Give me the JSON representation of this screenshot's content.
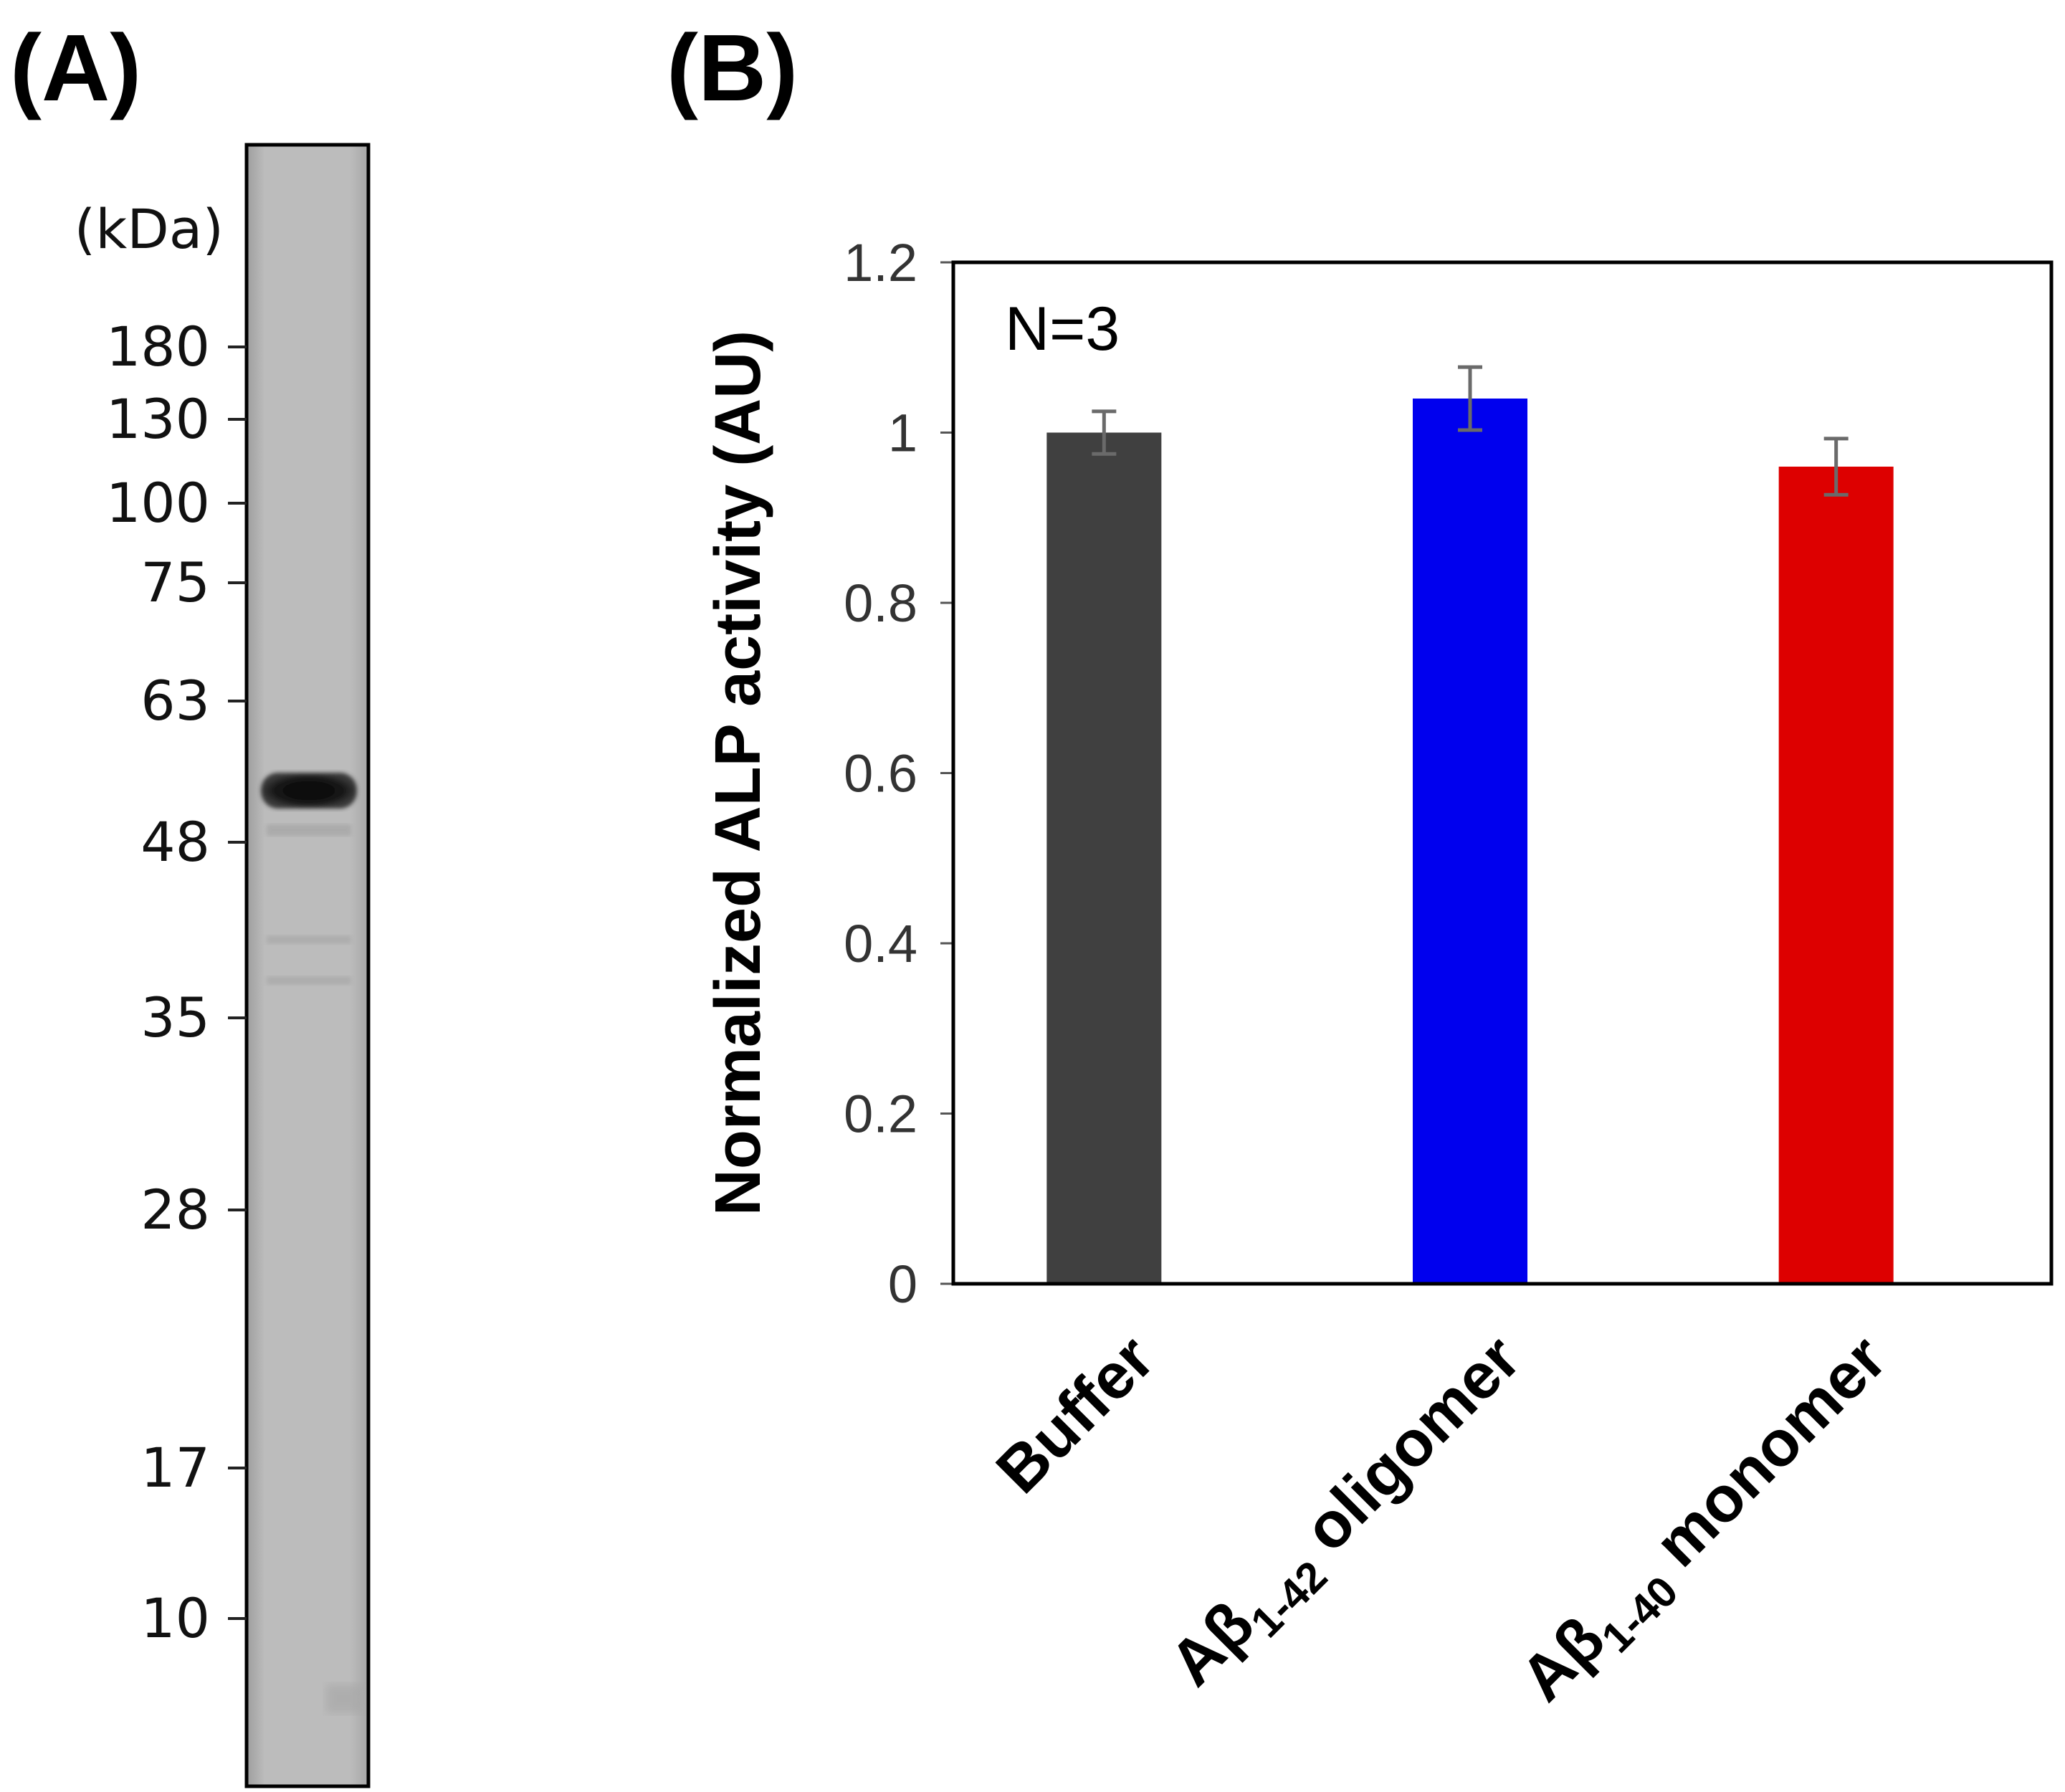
{
  "panels": {
    "a": {
      "label": "(A)"
    },
    "b": {
      "label": "(B)"
    }
  },
  "gel": {
    "unit_label": "(kDa)",
    "markers": [
      "180",
      "130",
      "100",
      "75",
      "63",
      "48",
      "35",
      "28",
      "17",
      "10"
    ],
    "main_band_kda": 55
  },
  "chart_data": {
    "type": "bar",
    "categories": [
      "Buffer",
      "Aβ1-42 oligomer",
      "Aβ1-40 monomer"
    ],
    "category_parts": [
      {
        "main": "Buffer",
        "sub": "",
        "rest": ""
      },
      {
        "main": "Aβ",
        "sub": "1-42",
        "rest": " oligomer"
      },
      {
        "main": "Aβ",
        "sub": "1-40",
        "rest": " monomer"
      }
    ],
    "values": [
      1.0,
      1.04,
      0.96
    ],
    "errors": [
      0.025,
      0.037,
      0.033
    ],
    "colors": [
      "#404040",
      "#0000ee",
      "#dd0000"
    ],
    "ylabel": "Normalized ALP activity (AU)",
    "ylim": [
      0,
      1.2
    ],
    "yticks": [
      0,
      0.2,
      0.4,
      0.6,
      0.8,
      1,
      1.2
    ],
    "ytick_labels": [
      "0",
      "0.2",
      "0.4",
      "0.6",
      "0.8",
      "1",
      "1.2"
    ],
    "annotation": "N=3",
    "grid": false
  }
}
